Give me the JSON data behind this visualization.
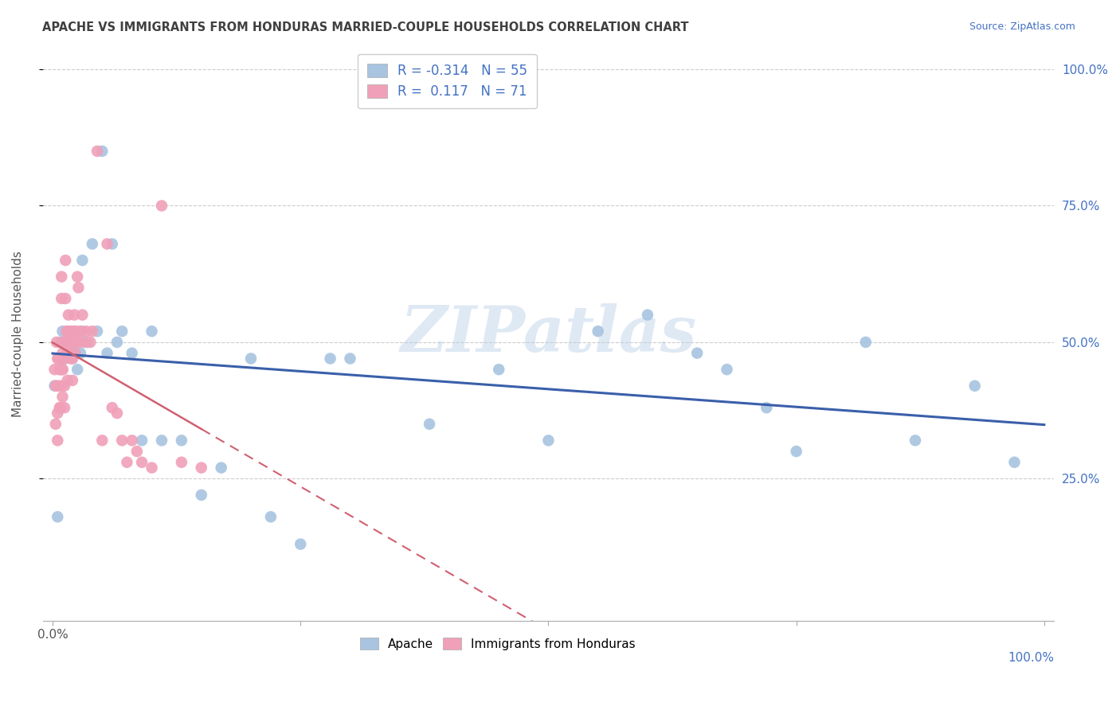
{
  "title": "APACHE VS IMMIGRANTS FROM HONDURAS MARRIED-COUPLE HOUSEHOLDS CORRELATION CHART",
  "source": "Source: ZipAtlas.com",
  "ylabel": "Married-couple Households",
  "watermark": "ZIPatlas",
  "color_apache": "#a8c4e0",
  "color_honduras": "#f0a0b8",
  "color_line_apache": "#3a5faa",
  "color_line_honduras": "#d06070",
  "color_title": "#404040",
  "color_source": "#4472c4",
  "color_ticks_blue": "#4472c4",
  "legend_label1": "R = -0.314   N = 55",
  "legend_label2": "R =  0.117   N = 71",
  "bottom_label1": "Apache",
  "bottom_label2": "Immigrants from Honduras",
  "apache_x": [
    0.002,
    0.005,
    0.008,
    0.01,
    0.01,
    0.012,
    0.012,
    0.015,
    0.015,
    0.015,
    0.018,
    0.018,
    0.02,
    0.02,
    0.02,
    0.022,
    0.022,
    0.025,
    0.025,
    0.028,
    0.03,
    0.03,
    0.035,
    0.04,
    0.045,
    0.05,
    0.055,
    0.06,
    0.065,
    0.07,
    0.08,
    0.09,
    0.1,
    0.11,
    0.13,
    0.15,
    0.17,
    0.2,
    0.22,
    0.25,
    0.28,
    0.3,
    0.38,
    0.45,
    0.5,
    0.55,
    0.6,
    0.65,
    0.68,
    0.72,
    0.75,
    0.82,
    0.87,
    0.93,
    0.97
  ],
  "apache_y": [
    0.42,
    0.18,
    0.5,
    0.47,
    0.52,
    0.5,
    0.47,
    0.5,
    0.52,
    0.48,
    0.48,
    0.5,
    0.5,
    0.47,
    0.52,
    0.48,
    0.5,
    0.5,
    0.45,
    0.48,
    0.65,
    0.52,
    0.5,
    0.68,
    0.52,
    0.85,
    0.48,
    0.68,
    0.5,
    0.52,
    0.48,
    0.32,
    0.52,
    0.32,
    0.32,
    0.22,
    0.27,
    0.47,
    0.18,
    0.13,
    0.47,
    0.47,
    0.35,
    0.45,
    0.32,
    0.52,
    0.55,
    0.48,
    0.45,
    0.38,
    0.3,
    0.5,
    0.32,
    0.42,
    0.28
  ],
  "honduras_x": [
    0.002,
    0.003,
    0.003,
    0.004,
    0.005,
    0.005,
    0.005,
    0.005,
    0.006,
    0.007,
    0.007,
    0.008,
    0.008,
    0.008,
    0.009,
    0.009,
    0.01,
    0.01,
    0.01,
    0.01,
    0.01,
    0.012,
    0.012,
    0.012,
    0.012,
    0.013,
    0.013,
    0.014,
    0.014,
    0.015,
    0.015,
    0.015,
    0.015,
    0.016,
    0.016,
    0.017,
    0.017,
    0.018,
    0.018,
    0.019,
    0.02,
    0.02,
    0.02,
    0.021,
    0.022,
    0.022,
    0.023,
    0.024,
    0.025,
    0.026,
    0.027,
    0.028,
    0.03,
    0.032,
    0.034,
    0.038,
    0.04,
    0.045,
    0.05,
    0.055,
    0.06,
    0.065,
    0.07,
    0.075,
    0.08,
    0.085,
    0.09,
    0.1,
    0.11,
    0.13,
    0.15
  ],
  "honduras_y": [
    0.45,
    0.42,
    0.35,
    0.5,
    0.42,
    0.47,
    0.37,
    0.32,
    0.47,
    0.45,
    0.38,
    0.45,
    0.42,
    0.38,
    0.62,
    0.58,
    0.45,
    0.48,
    0.5,
    0.45,
    0.4,
    0.5,
    0.47,
    0.42,
    0.38,
    0.65,
    0.58,
    0.5,
    0.52,
    0.52,
    0.5,
    0.48,
    0.43,
    0.55,
    0.5,
    0.52,
    0.48,
    0.5,
    0.47,
    0.52,
    0.5,
    0.47,
    0.43,
    0.52,
    0.55,
    0.5,
    0.48,
    0.52,
    0.62,
    0.6,
    0.5,
    0.52,
    0.55,
    0.5,
    0.52,
    0.5,
    0.52,
    0.85,
    0.32,
    0.68,
    0.38,
    0.37,
    0.32,
    0.28,
    0.32,
    0.3,
    0.28,
    0.27,
    0.75,
    0.28,
    0.27
  ],
  "xlim": [
    0.0,
    1.0
  ],
  "ylim": [
    0.0,
    1.0
  ],
  "ytick_pos": [
    0.25,
    0.5,
    0.75,
    1.0
  ],
  "ytick_labels": [
    "25.0%",
    "50.0%",
    "75.0%",
    "100.0%"
  ],
  "xtick_labels_left": [
    "0.0%"
  ],
  "xtick_labels_right": [
    "100.0%"
  ]
}
